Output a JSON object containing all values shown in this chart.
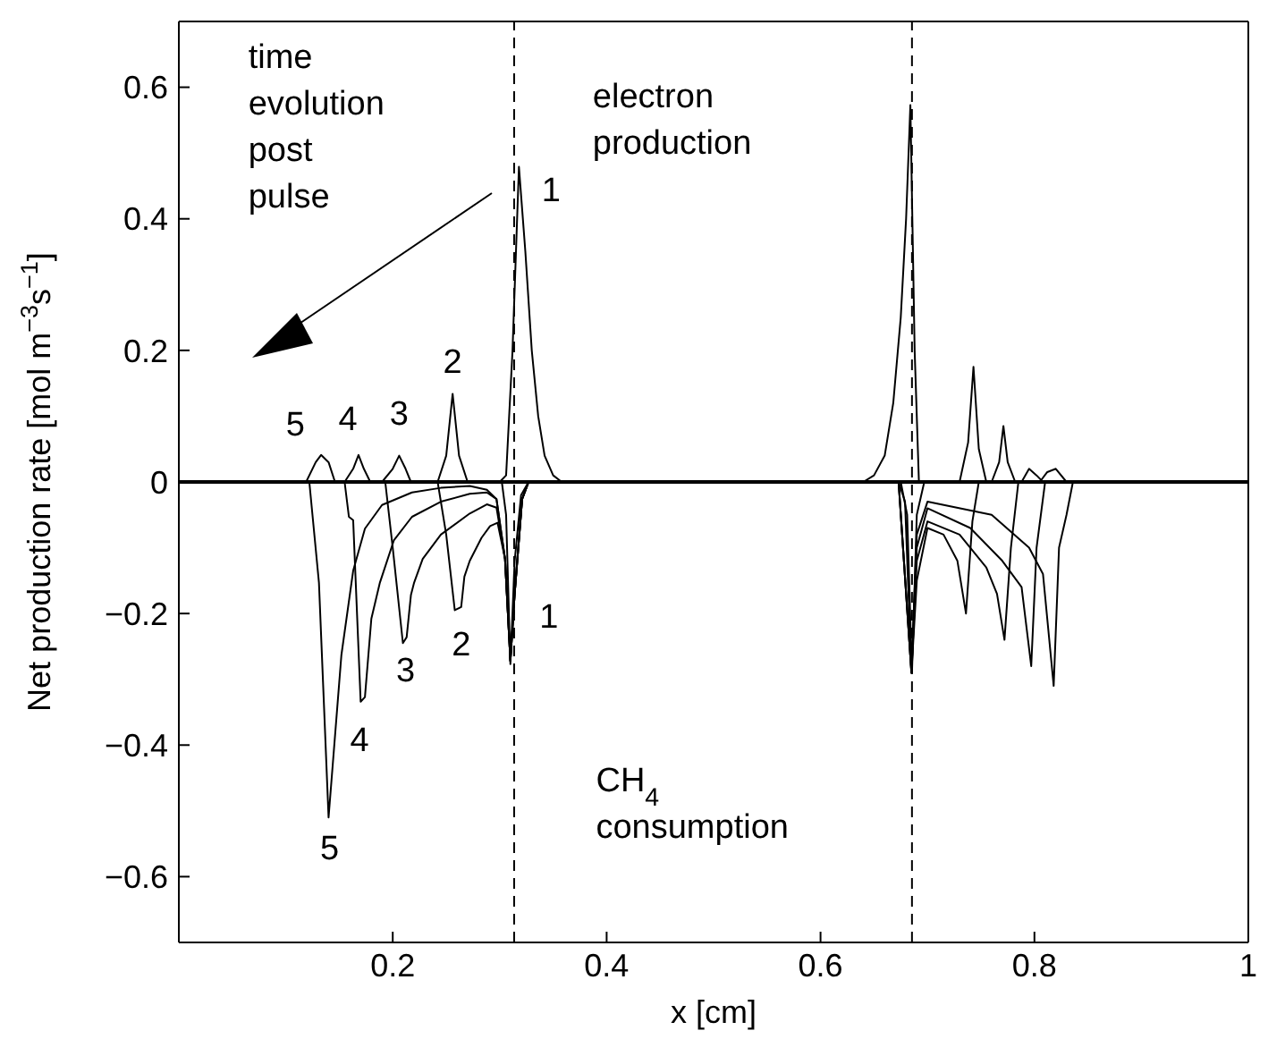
{
  "chart_data": {
    "type": "line",
    "xlabel": "x [cm]",
    "ylabel": "Net production rate [mol m$^{−3}$s$^{−1}$]",
    "xlim": [
      0,
      1
    ],
    "xticks": [
      0.2,
      0.4,
      0.6,
      0.8,
      1
    ],
    "ylim": [
      -0.7,
      0.7
    ],
    "yticks": [
      -0.6,
      -0.4,
      -0.2,
      0,
      0.2,
      0.4,
      0.6
    ],
    "ref_lines": [
      {
        "axis": "x",
        "value": 0.3135,
        "line_style": "dashed",
        "color": "#000000"
      },
      {
        "axis": "x",
        "value": 0.6855,
        "line_style": "dashed",
        "color": "#000000"
      },
      {
        "axis": "y",
        "value": 0,
        "color": "#000000"
      }
    ],
    "series": [
      {
        "color": "#000000",
        "x": [
          0.3,
          0.306,
          0.312,
          0.318,
          0.324,
          0.33,
          0.336,
          0.342,
          0.35,
          0.358,
          0.5,
          0.64,
          0.65,
          0.66,
          0.668,
          0.675,
          0.68,
          0.684,
          0.688,
          0.692
        ],
        "values": [
          0,
          0.01,
          0.2,
          0.479,
          0.35,
          0.2,
          0.1,
          0.04,
          0.01,
          0,
          null,
          0,
          0.01,
          0.04,
          0.12,
          0.25,
          0.4,
          0.573,
          0.2,
          0
        ]
      },
      {
        "color": "#000000",
        "x": [
          0.242,
          0.25,
          0.256,
          0.262,
          0.27,
          0.5,
          0.73,
          0.738,
          0.743,
          0.748,
          0.755
        ],
        "values": [
          0,
          0.04,
          0.134,
          0.04,
          0,
          null,
          0,
          0.06,
          0.175,
          0.05,
          0
        ]
      },
      {
        "color": "#000000",
        "x": [
          0.19,
          0.2,
          0.206,
          0.212,
          0.217,
          0.5,
          0.76,
          0.767,
          0.771,
          0.775,
          0.782
        ],
        "values": [
          0,
          0.02,
          0.04,
          0.02,
          0,
          null,
          0,
          0.03,
          0.085,
          0.03,
          0
        ]
      },
      {
        "color": "#000000",
        "x": [
          0.155,
          0.163,
          0.168,
          0.173,
          0.179,
          0.5,
          0.788,
          0.795,
          0.802,
          0.808
        ],
        "values": [
          0,
          0.02,
          0.041,
          0.02,
          0,
          null,
          0,
          0.02,
          0.01,
          0
        ]
      },
      {
        "color": "#000000",
        "x": [
          0.119,
          0.128,
          0.133,
          0.14,
          0.146,
          0.5,
          0.805,
          0.812,
          0.82,
          0.83
        ],
        "values": [
          0,
          0.03,
          0.041,
          0.03,
          0,
          null,
          0,
          0.015,
          0.02,
          0
        ]
      },
      {
        "color": "#000000",
        "x": [
          0.302,
          0.306,
          0.31,
          0.314,
          0.32,
          0.327,
          0.5,
          0.675,
          0.681,
          0.6855,
          0.69,
          0.697
        ],
        "values": [
          0,
          -0.05,
          -0.277,
          -0.12,
          -0.02,
          0,
          null,
          0,
          -0.05,
          -0.29,
          -0.05,
          0
        ]
      },
      {
        "color": "#000000",
        "x": [
          0.242,
          0.25,
          0.258,
          0.264,
          0.267,
          0.272,
          0.283,
          0.291,
          0.298,
          0.305,
          0.31,
          0.314,
          0.321,
          0.327,
          0.5,
          0.673,
          0.679,
          0.685,
          0.69,
          0.7,
          0.715,
          0.728,
          0.736,
          0.742,
          0.748
        ],
        "values": [
          0,
          -0.08,
          -0.195,
          -0.19,
          -0.144,
          -0.12,
          -0.085,
          -0.067,
          -0.062,
          -0.117,
          -0.272,
          -0.17,
          -0.026,
          0,
          null,
          0,
          -0.03,
          -0.29,
          -0.15,
          -0.07,
          -0.08,
          -0.12,
          -0.2,
          -0.06,
          0
        ]
      },
      {
        "color": "#000000",
        "x": [
          0.193,
          0.2,
          0.2095,
          0.213,
          0.217,
          0.22,
          0.228,
          0.245,
          0.272,
          0.288,
          0.297,
          0.305,
          0.31,
          0.314,
          0.321,
          0.327,
          0.5,
          0.673,
          0.685,
          0.69,
          0.7,
          0.73,
          0.755,
          0.765,
          0.772,
          0.778,
          0.785
        ],
        "values": [
          0,
          -0.1,
          -0.245,
          -0.236,
          -0.172,
          -0.153,
          -0.117,
          -0.08,
          -0.048,
          -0.034,
          -0.039,
          -0.117,
          -0.272,
          -0.17,
          -0.026,
          0,
          null,
          0,
          -0.29,
          -0.12,
          -0.06,
          -0.08,
          -0.13,
          -0.17,
          -0.24,
          -0.1,
          0
        ]
      },
      {
        "color": "#000000",
        "x": [
          0.155,
          0.159,
          0.163,
          0.17,
          0.174,
          0.18,
          0.188,
          0.201,
          0.218,
          0.245,
          0.272,
          0.288,
          0.297,
          0.305,
          0.31,
          0.314,
          0.321,
          0.327,
          0.5,
          0.673,
          0.685,
          0.69,
          0.7,
          0.74,
          0.77,
          0.788,
          0.797,
          0.802,
          0.81
        ],
        "values": [
          0,
          -0.053,
          -0.058,
          -0.334,
          -0.327,
          -0.208,
          -0.153,
          -0.089,
          -0.053,
          -0.03,
          -0.018,
          -0.016,
          -0.026,
          -0.117,
          -0.272,
          -0.17,
          -0.026,
          0,
          null,
          0,
          -0.29,
          -0.1,
          -0.04,
          -0.07,
          -0.12,
          -0.16,
          -0.28,
          -0.1,
          0
        ]
      },
      {
        "color": "#000000",
        "x": [
          0.122,
          0.131,
          0.14,
          0.152,
          0.163,
          0.174,
          0.19,
          0.218,
          0.245,
          0.272,
          0.288,
          0.297,
          0.305,
          0.31,
          0.314,
          0.321,
          0.327,
          0.5,
          0.673,
          0.685,
          0.69,
          0.7,
          0.76,
          0.795,
          0.808,
          0.818,
          0.823,
          0.83,
          0.836
        ],
        "values": [
          0,
          -0.153,
          -0.51,
          -0.263,
          -0.135,
          -0.071,
          -0.035,
          -0.016,
          -0.009,
          -0.006,
          -0.012,
          -0.026,
          -0.117,
          -0.272,
          -0.17,
          -0.026,
          0,
          null,
          0,
          -0.29,
          -0.08,
          -0.03,
          -0.05,
          -0.1,
          -0.14,
          -0.31,
          -0.1,
          -0.05,
          0
        ]
      }
    ],
    "annotations": [
      "time\nevolution\npost\npulse",
      "electron\nproduction",
      "CH$_{4}$\nconsumption",
      "1",
      "2",
      "3",
      "4",
      "5",
      "1",
      "2",
      "3",
      "4",
      "5"
    ]
  }
}
